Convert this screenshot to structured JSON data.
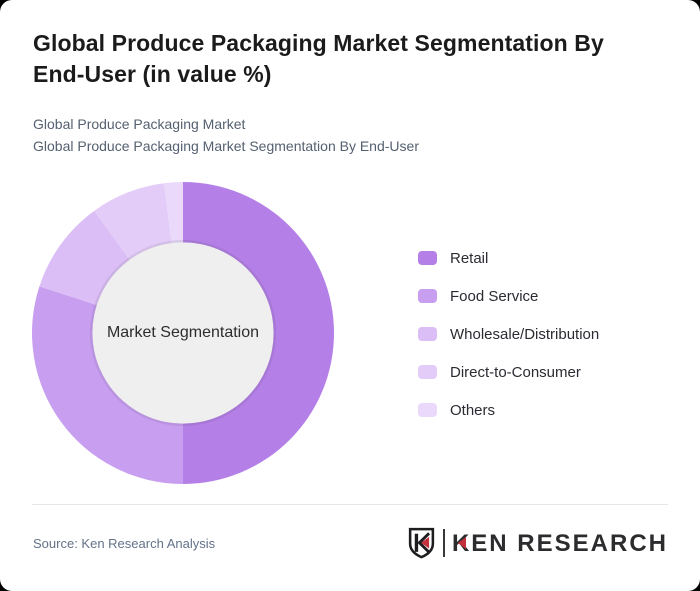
{
  "window": {
    "background": "#000000",
    "card_background": "#ffffff"
  },
  "header": {
    "title": "Global Produce Packaging Market Segmentation By End-User (in value %)",
    "subtitle_lines": [
      "Global Produce Packaging Market",
      "Global Produce Packaging Market Segmentation By End-User"
    ]
  },
  "chart_data": {
    "type": "pie",
    "subtype": "donut",
    "title": "Global Produce Packaging Market Segmentation By End-User (in value %)",
    "center_label": "Market Segmentation",
    "unit": "% of value",
    "categories": [
      "Retail",
      "Food Service",
      "Wholesale/Distribution",
      "Direct-to-Consumer",
      "Others"
    ],
    "values": [
      50,
      30,
      10,
      8,
      2
    ],
    "colors": [
      "#b480e7",
      "#c89ff0",
      "#dbbef5",
      "#e3cdf8",
      "#ead9fb"
    ],
    "start_angle_deg": 0,
    "direction": "clockwise",
    "hole_radius_ratio": 0.6,
    "hole_color": "#efefef",
    "legend_position": "right"
  },
  "footer": {
    "source": "Source: Ken Research Analysis",
    "divider_color": "#e7e7e7",
    "logo": {
      "name": "Ken Research",
      "badge_letter": "K",
      "wordmark": "KEN RESEARCH",
      "accent_color": "#c2313c",
      "ink_color": "#2c2c2e"
    }
  }
}
